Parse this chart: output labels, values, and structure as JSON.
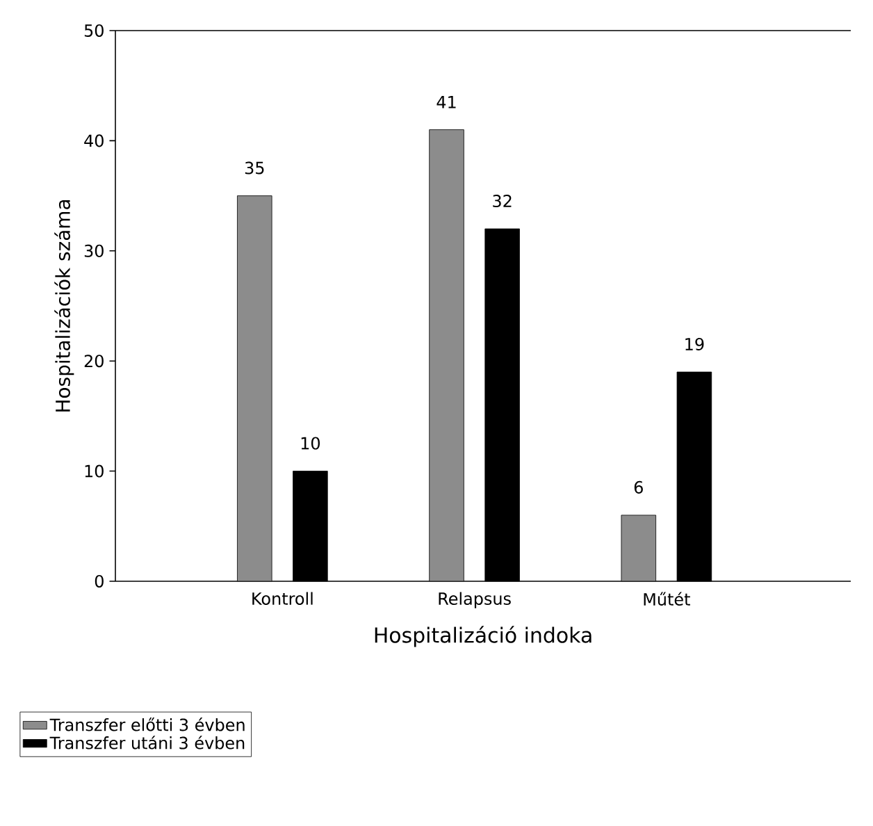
{
  "chart_data": {
    "type": "bar",
    "xlabel": "Hospitalizáció indoka",
    "ylabel": "Hospitalizációk száma",
    "categories": [
      "Kontroll",
      "Relapsus",
      "Műtét"
    ],
    "series": [
      {
        "name": "Transzfer előtti 3 évben",
        "color": "#8c8c8c",
        "values": [
          35,
          41,
          6
        ]
      },
      {
        "name": "Transzfer utáni 3 évben",
        "color": "#000000",
        "values": [
          10,
          32,
          19
        ]
      }
    ],
    "ylim": [
      0,
      50
    ],
    "yticks": [
      0,
      10,
      20,
      30,
      40,
      50
    ],
    "grid": false,
    "legend": "bottom left",
    "data_labels": true
  }
}
